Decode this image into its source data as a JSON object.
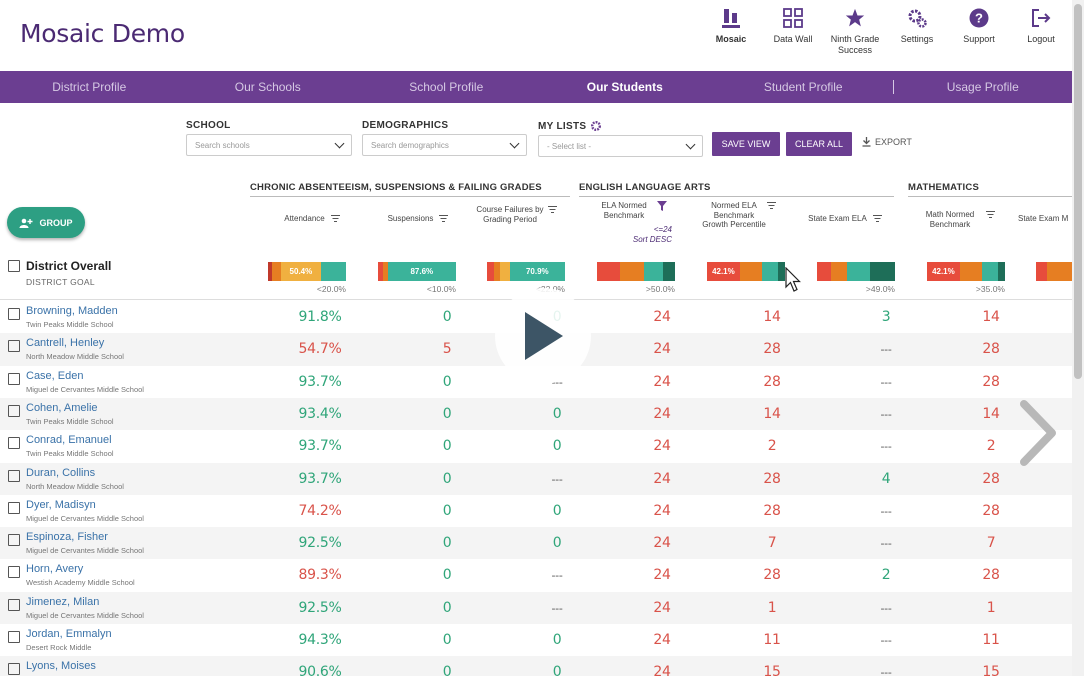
{
  "app": {
    "title": "Mosaic Demo"
  },
  "top_nav": [
    {
      "label": "Mosaic",
      "icon": "mosaic-icon",
      "active": true
    },
    {
      "label": "Data Wall",
      "icon": "data-wall-icon"
    },
    {
      "label": "Ninth Grade Success",
      "icon": "star-icon"
    },
    {
      "label": "Settings",
      "icon": "gear-icon"
    },
    {
      "label": "Support",
      "icon": "help-icon"
    },
    {
      "label": "Logout",
      "icon": "logout-icon"
    }
  ],
  "tabs": [
    "District Profile",
    "Our Schools",
    "School Profile",
    "Our Students",
    "Student Profile",
    "Usage Profile"
  ],
  "active_tab": "Our Students",
  "filters": {
    "school": {
      "label": "SCHOOL",
      "placeholder": "Search schools"
    },
    "demographics": {
      "label": "DEMOGRAPHICS",
      "placeholder": "Search demographics"
    },
    "my_lists": {
      "label": "MY LISTS",
      "placeholder": "- Select list -"
    }
  },
  "buttons": {
    "save_view": "SAVE VIEW",
    "clear_all": "CLEAR ALL",
    "export": "EXPORT",
    "group": "GROUP"
  },
  "groups": {
    "chronic": "CHRONIC ABSENTEEISM, SUSPENSIONS & FAILING GRADES",
    "ela": "ENGLISH LANGUAGE ARTS",
    "math": "MATHEMATICS"
  },
  "columns": {
    "attendance": "Attendance",
    "suspensions": "Suspensions",
    "course_failures": "Course Failures by Grading Period",
    "ela_normed": "ELA Normed Benchmark",
    "ela_filter_note": "<=24",
    "ela_sort_note": "Sort DESC",
    "ela_growth": "Normed ELA Benchmark Growth Percentile",
    "state_ela": "State Exam ELA",
    "math_normed": "Math Normed Benchmark",
    "state_math": "State Exam M"
  },
  "district": {
    "title": "District Overall",
    "goal_label": "DISTRICT GOAL",
    "bar_labels": {
      "attendance": "50.4%",
      "suspensions": "87.6%",
      "course_failures": "70.9%",
      "ela_growth": "42.1%",
      "math_normed": "42.1%"
    },
    "goals": {
      "attendance": "<20.0%",
      "suspensions": "<10.0%",
      "course_failures": "<22.0%",
      "ela_normed": ">50.0%",
      "state_ela": ">49.0%",
      "math_normed": ">35.0%"
    },
    "bars": {
      "attendance": [
        {
          "v": 5,
          "c": "#c0392b"
        },
        {
          "v": 12,
          "c": "#e67e22"
        },
        {
          "v": 50.4,
          "c": "#f0b040"
        },
        {
          "v": 32.6,
          "c": "#3bb39a"
        }
      ],
      "suspensions": [
        {
          "v": 6,
          "c": "#e74c3c"
        },
        {
          "v": 6.4,
          "c": "#e67e22"
        },
        {
          "v": 87.6,
          "c": "#3bb39a"
        }
      ],
      "course_failures": [
        {
          "v": 9,
          "c": "#e74c3c"
        },
        {
          "v": 8,
          "c": "#e67e22"
        },
        {
          "v": 12.1,
          "c": "#f0b040"
        },
        {
          "v": 70.9,
          "c": "#3bb39a"
        }
      ],
      "ela_normed": [
        {
          "v": 30,
          "c": "#e74c3c"
        },
        {
          "v": 30,
          "c": "#e67e22"
        },
        {
          "v": 25,
          "c": "#3bb39a"
        },
        {
          "v": 15,
          "c": "#1e6e58"
        }
      ],
      "ela_growth": [
        {
          "v": 42.1,
          "c": "#e74c3c"
        },
        {
          "v": 28,
          "c": "#e67e22"
        },
        {
          "v": 21,
          "c": "#3bb39a"
        },
        {
          "v": 8.9,
          "c": "#1e6e58"
        }
      ],
      "state_ela": [
        {
          "v": 18,
          "c": "#e74c3c"
        },
        {
          "v": 20,
          "c": "#e67e22"
        },
        {
          "v": 30,
          "c": "#3bb39a"
        },
        {
          "v": 32,
          "c": "#1e6e58"
        }
      ],
      "math_normed": [
        {
          "v": 42.1,
          "c": "#e74c3c"
        },
        {
          "v": 28,
          "c": "#e67e22"
        },
        {
          "v": 21,
          "c": "#3bb39a"
        },
        {
          "v": 8.9,
          "c": "#1e6e58"
        }
      ],
      "state_math": [
        {
          "v": 30,
          "c": "#e74c3c"
        },
        {
          "v": 70,
          "c": "#e67e22"
        }
      ]
    }
  },
  "students": [
    {
      "name": "Browning, Madden",
      "school": "Twin Peaks Middle School",
      "att": "91.8%",
      "susp": "0",
      "cf": "0",
      "ela": "24",
      "growth": "14",
      "state": "3",
      "math": "14"
    },
    {
      "name": "Cantrell, Henley",
      "school": "North Meadow Middle School",
      "att": "54.7%",
      "susp": "5",
      "cf": "",
      "ela": "24",
      "growth": "28",
      "state": "---",
      "math": "28"
    },
    {
      "name": "Case, Eden",
      "school": "Miguel de Cervantes Middle School",
      "att": "93.7%",
      "susp": "0",
      "cf": "---",
      "ela": "24",
      "growth": "28",
      "state": "---",
      "math": "28"
    },
    {
      "name": "Cohen, Amelie",
      "school": "Twin Peaks Middle School",
      "att": "93.4%",
      "susp": "0",
      "cf": "0",
      "ela": "24",
      "growth": "14",
      "state": "---",
      "math": "14"
    },
    {
      "name": "Conrad, Emanuel",
      "school": "Twin Peaks Middle School",
      "att": "93.7%",
      "susp": "0",
      "cf": "0",
      "ela": "24",
      "growth": "2",
      "state": "---",
      "math": "2"
    },
    {
      "name": "Duran, Collins",
      "school": "North Meadow Middle School",
      "att": "93.7%",
      "susp": "0",
      "cf": "---",
      "ela": "24",
      "growth": "28",
      "state": "4",
      "math": "28"
    },
    {
      "name": "Dyer, Madisyn",
      "school": "Miguel de Cervantes Middle School",
      "att": "74.2%",
      "susp": "0",
      "cf": "0",
      "ela": "24",
      "growth": "28",
      "state": "---",
      "math": "28"
    },
    {
      "name": "Espinoza, Fisher",
      "school": "Miguel de Cervantes Middle School",
      "att": "92.5%",
      "susp": "0",
      "cf": "0",
      "ela": "24",
      "growth": "7",
      "state": "---",
      "math": "7"
    },
    {
      "name": "Horn, Avery",
      "school": "Westish Academy Middle School",
      "att": "89.3%",
      "susp": "0",
      "cf": "---",
      "ela": "24",
      "growth": "28",
      "state": "2",
      "math": "28"
    },
    {
      "name": "Jimenez, Milan",
      "school": "Miguel de Cervantes Middle School",
      "att": "92.5%",
      "susp": "0",
      "cf": "---",
      "ela": "24",
      "growth": "1",
      "state": "---",
      "math": "1"
    },
    {
      "name": "Jordan, Emmalyn",
      "school": "Desert Rock Middle",
      "att": "94.3%",
      "susp": "0",
      "cf": "0",
      "ela": "24",
      "growth": "11",
      "state": "---",
      "math": "11"
    },
    {
      "name": "Lyons, Moises",
      "school": "",
      "att": "90.6%",
      "susp": "0",
      "cf": "0",
      "ela": "24",
      "growth": "15",
      "state": "---",
      "math": "15"
    }
  ]
}
